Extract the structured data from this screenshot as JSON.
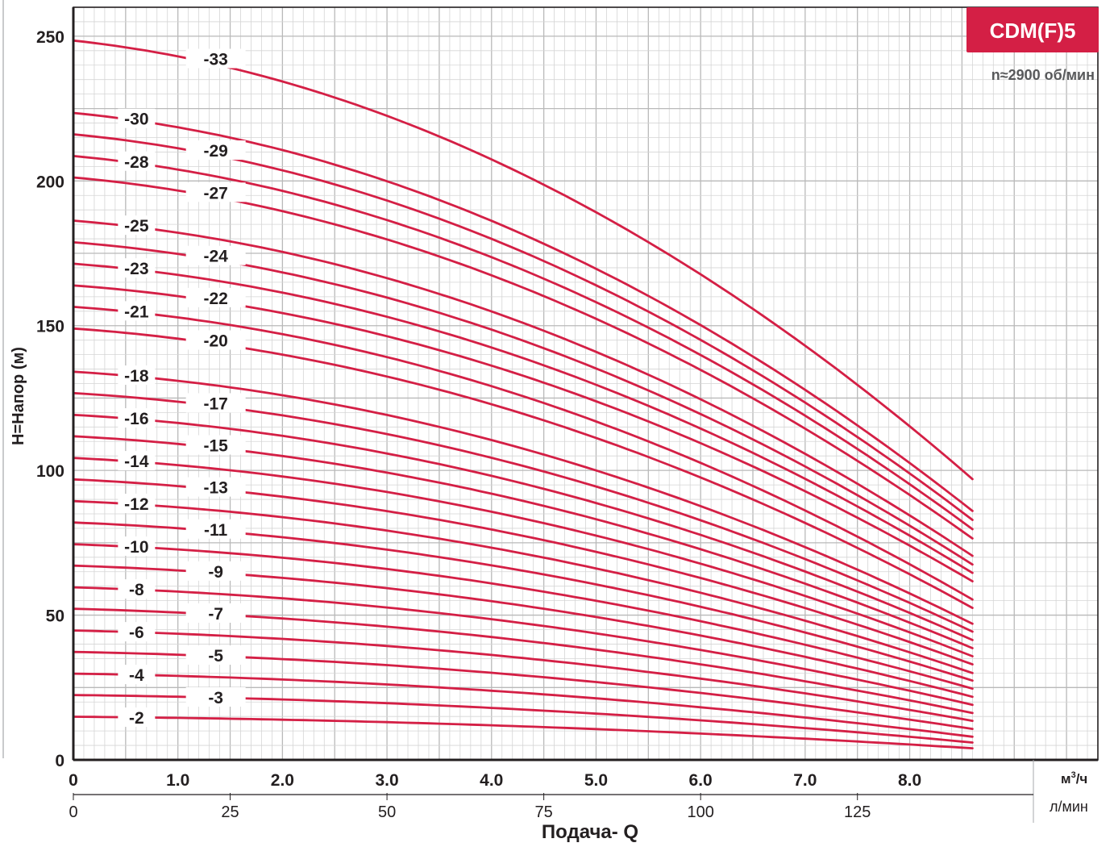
{
  "badge": {
    "label": "CDM(F)5",
    "color": "#d41f45"
  },
  "speed_label": "n≈2900 об/мин",
  "units": {
    "m3h": "м",
    "m3h_sup": "3",
    "m3h_tail": "/ч",
    "lmin": "л/мин"
  },
  "colors": {
    "curve": "#d41f45",
    "grid_minor": "#d5d5d5",
    "grid_major": "#b9b9b9",
    "axis": "#231f20"
  },
  "chart_data": {
    "type": "line",
    "xlabel": "Подача- Q",
    "ylabel": "H=Напор (м)",
    "xlim": [
      0,
      9.8
    ],
    "ylim": [
      0,
      260
    ],
    "x_ticks": [
      {
        "v": 0,
        "label": "0"
      },
      {
        "v": 1,
        "label": "1.0"
      },
      {
        "v": 2,
        "label": "2.0"
      },
      {
        "v": 3,
        "label": "3.0"
      },
      {
        "v": 4,
        "label": "4.0"
      },
      {
        "v": 5,
        "label": "5.0"
      },
      {
        "v": 6,
        "label": "6.0"
      },
      {
        "v": 7,
        "label": "7.0"
      },
      {
        "v": 8,
        "label": "8.0"
      }
    ],
    "x2_ticks": [
      {
        "v": 0,
        "label": "0"
      },
      {
        "v": 25,
        "label": "25"
      },
      {
        "v": 50,
        "label": "50"
      },
      {
        "v": 75,
        "label": "75"
      },
      {
        "v": 100,
        "label": "100"
      },
      {
        "v": 125,
        "label": "125"
      }
    ],
    "y_ticks": [
      {
        "v": 0,
        "label": "0"
      },
      {
        "v": 50,
        "label": "50"
      },
      {
        "v": 100,
        "label": "100"
      },
      {
        "v": 150,
        "label": "150"
      },
      {
        "v": 200,
        "label": "200"
      },
      {
        "v": 250,
        "label": "250"
      }
    ],
    "q_end": 8.6,
    "grid": true,
    "series": [
      {
        "name": "-2",
        "h0": 14.9,
        "hend": 4.0
      },
      {
        "name": "-3",
        "h0": 22.4,
        "hend": 6.0
      },
      {
        "name": "-4",
        "h0": 29.8,
        "hend": 8.0
      },
      {
        "name": "-5",
        "h0": 37.3,
        "hend": 10.7
      },
      {
        "name": "-6",
        "h0": 44.7,
        "hend": 13.5
      },
      {
        "name": "-7",
        "h0": 52.2,
        "hend": 16.2
      },
      {
        "name": "-8",
        "h0": 59.6,
        "hend": 19.0
      },
      {
        "name": "-9",
        "h0": 67.1,
        "hend": 21.8
      },
      {
        "name": "-10",
        "h0": 74.5,
        "hend": 24.6
      },
      {
        "name": "-11",
        "h0": 82.0,
        "hend": 27.4
      },
      {
        "name": "-12",
        "h0": 89.4,
        "hend": 30.0
      },
      {
        "name": "-13",
        "h0": 96.9,
        "hend": 33.0
      },
      {
        "name": "-14",
        "h0": 104.3,
        "hend": 35.8
      },
      {
        "name": "-15",
        "h0": 111.8,
        "hend": 38.6
      },
      {
        "name": "-16",
        "h0": 119.2,
        "hend": 41.4
      },
      {
        "name": "-17",
        "h0": 126.7,
        "hend": 44.3
      },
      {
        "name": "-18",
        "h0": 134.1,
        "hend": 47.0
      },
      {
        "name": "-20",
        "h0": 149.0,
        "hend": 52.5
      },
      {
        "name": "-21",
        "h0": 156.5,
        "hend": 55.4
      },
      {
        "name": "-22",
        "h0": 163.9,
        "hend": 61.7
      },
      {
        "name": "-23",
        "h0": 171.4,
        "hend": 64.6
      },
      {
        "name": "-24",
        "h0": 178.8,
        "hend": 67.5
      },
      {
        "name": "-25",
        "h0": 186.3,
        "hend": 70.5
      },
      {
        "name": "-27",
        "h0": 201.2,
        "hend": 76.5
      },
      {
        "name": "-28",
        "h0": 208.6,
        "hend": 79.7
      },
      {
        "name": "-29",
        "h0": 216.1,
        "hend": 82.9
      },
      {
        "name": "-30",
        "h0": 223.5,
        "hend": 86.0
      },
      {
        "name": "-33",
        "h0": 248.5,
        "hend": 97.0
      }
    ]
  }
}
